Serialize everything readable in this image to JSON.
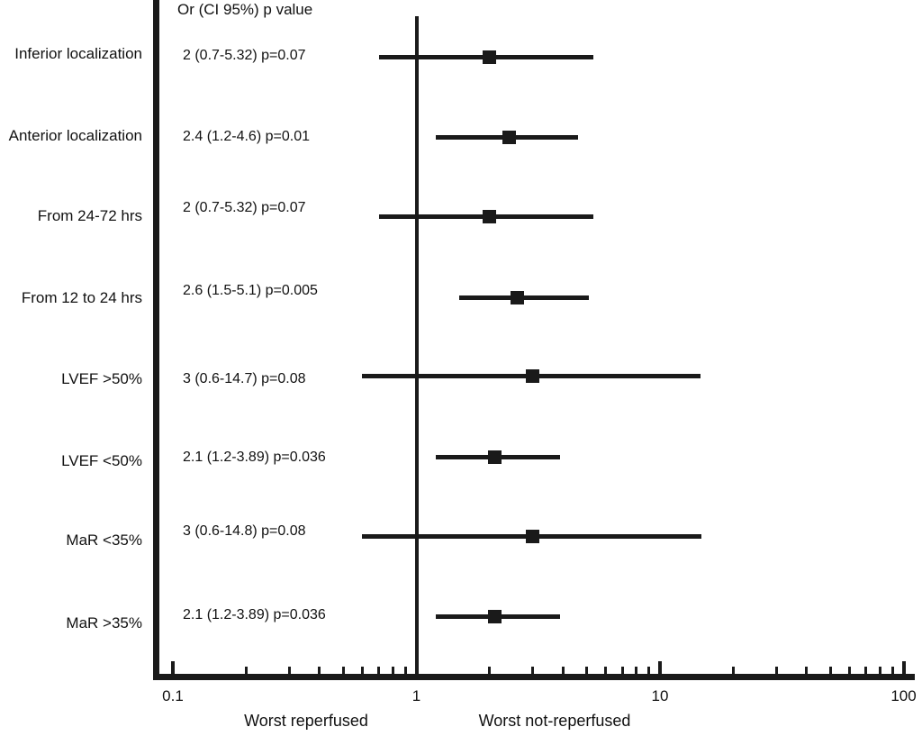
{
  "chart_data": {
    "type": "forest",
    "scale": "log",
    "header": "Or (CI 95%) p value",
    "x_axis": {
      "range": [
        0.1,
        100
      ],
      "major_ticks": [
        0.1,
        1,
        10,
        100
      ],
      "minor_ticks": [
        0.2,
        0.3,
        0.4,
        0.5,
        0.6,
        0.7,
        0.8,
        0.9,
        2,
        3,
        4,
        5,
        6,
        7,
        8,
        9,
        20,
        30,
        40,
        50,
        60,
        70,
        80,
        90
      ],
      "reference_line": 1,
      "left_caption": "Worst reperfused",
      "right_caption": "Worst not-reperfused"
    },
    "rows": [
      {
        "label": "Inferior localization",
        "text": "2 (0.7-5.32) p=0.07",
        "or": 2,
        "ci_low": 0.7,
        "ci_high": 5.32,
        "p": "0.07"
      },
      {
        "label": "Anterior localization",
        "text": "2.4 (1.2-4.6) p=0.01",
        "or": 2.4,
        "ci_low": 1.2,
        "ci_high": 4.6,
        "p": "0.01"
      },
      {
        "label": "From 24-72 hrs",
        "text": "2 (0.7-5.32) p=0.07",
        "or": 2,
        "ci_low": 0.7,
        "ci_high": 5.32,
        "p": "0.07"
      },
      {
        "label": "From 12 to 24 hrs",
        "text": "2.6 (1.5-5.1) p=0.005",
        "or": 2.6,
        "ci_low": 1.5,
        "ci_high": 5.1,
        "p": "0.005"
      },
      {
        "label": "LVEF >50%",
        "text": "3 (0.6-14.7) p=0.08",
        "or": 3,
        "ci_low": 0.6,
        "ci_high": 14.7,
        "p": "0.08"
      },
      {
        "label": "LVEF <50%",
        "text": "2.1 (1.2-3.89) p=0.036",
        "or": 2.1,
        "ci_low": 1.2,
        "ci_high": 3.89,
        "p": "0.036"
      },
      {
        "label": "MaR <35%",
        "text": "3 (0.6-14.8) p=0.08",
        "or": 3,
        "ci_low": 0.6,
        "ci_high": 14.8,
        "p": "0.08"
      },
      {
        "label": "MaR >35%",
        "text": "2.1 (1.2-3.89) p=0.036",
        "or": 2.1,
        "ci_low": 1.2,
        "ci_high": 3.89,
        "p": "0.036"
      }
    ],
    "colors": {
      "ink": "#1a1a1a",
      "background": "#ffffff"
    }
  }
}
